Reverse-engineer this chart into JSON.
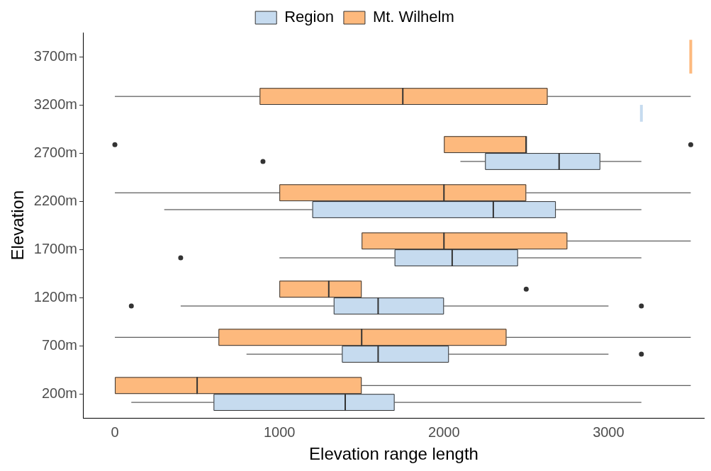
{
  "chart_data": {
    "type": "box",
    "orientation": "horizontal",
    "xlabel": "Elevation range length",
    "ylabel": "Elevation",
    "legend": "top",
    "grid": false,
    "categories": [
      "3700m",
      "3200m",
      "2700m",
      "2200m",
      "1700m",
      "1200m",
      "700m",
      "200m"
    ],
    "xlim": [
      -190,
      3580
    ],
    "xticks": [
      0,
      1000,
      2000,
      3000
    ],
    "series": [
      {
        "name": "Region",
        "color": "#c6dbef",
        "boxes": [
          null,
          {
            "low": 3200,
            "q1": 3200,
            "median": 3200,
            "q3": 3200,
            "high": 3200
          },
          {
            "low": 2100,
            "q1": 2250,
            "median": 2700,
            "q3": 2950,
            "high": 3200,
            "outliers": [
              900
            ]
          },
          {
            "low": 300,
            "q1": 1200,
            "median": 2300,
            "q3": 2680,
            "high": 3200
          },
          {
            "low": 1000,
            "q1": 1700,
            "median": 2050,
            "q3": 2450,
            "high": 3200,
            "outliers": [
              400
            ]
          },
          {
            "low": 400,
            "q1": 1330,
            "median": 1600,
            "q3": 2000,
            "high": 3000,
            "outliers": [
              100,
              3200
            ]
          },
          {
            "low": 800,
            "q1": 1380,
            "median": 1600,
            "q3": 2030,
            "high": 3000,
            "outliers": [
              3200
            ]
          },
          {
            "low": 100,
            "q1": 600,
            "median": 1400,
            "q3": 1700,
            "high": 3200
          }
        ]
      },
      {
        "name": "Mt. Wilhelm",
        "color": "#fdb97d",
        "boxes": [
          {
            "low": 3500,
            "q1": 3500,
            "median": 3500,
            "q3": 3500,
            "high": 3500
          },
          {
            "low": 0,
            "q1": 880,
            "median": 1750,
            "q3": 2630,
            "high": 3500
          },
          {
            "low": 2000,
            "q1": 2000,
            "median": 2500,
            "q3": 2500,
            "high": 2500,
            "outliers": [
              0,
              3500
            ]
          },
          {
            "low": 0,
            "q1": 1000,
            "median": 2000,
            "q3": 2500,
            "high": 3500
          },
          {
            "low": 1500,
            "q1": 1500,
            "median": 2000,
            "q3": 2750,
            "high": 3500
          },
          {
            "low": 1000,
            "q1": 1000,
            "median": 1300,
            "q3": 1500,
            "high": 1500,
            "outliers": [
              2500
            ]
          },
          {
            "low": 0,
            "q1": 630,
            "median": 1500,
            "q3": 2380,
            "high": 3500
          },
          {
            "low": 0,
            "q1": 0,
            "median": 500,
            "q3": 1500,
            "high": 3500
          }
        ]
      }
    ]
  }
}
